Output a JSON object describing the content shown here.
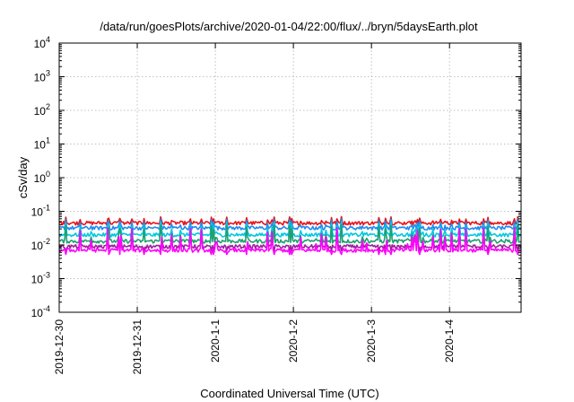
{
  "chart_data": {
    "type": "line",
    "title": "/data/run/goesPlots/archive/2020-01-04/22:00/flux/../bryn/5daysEarth.plot",
    "xlabel": "Coordinated Universal Time (UTC)",
    "ylabel": "cSv/day",
    "x_tick_labels": [
      "2019-12-30",
      "2019-12-31",
      "2020-1-1",
      "2020-1-2",
      "2020-1-3",
      "2020-1-4"
    ],
    "x_ticks": [
      "2019-12-30",
      "2019-12-31",
      "2020-01-01",
      "2020-01-02",
      "2020-01-03",
      "2020-01-04"
    ],
    "xlim": [
      "2019-12-30T00:00",
      "2020-01-04T22:00"
    ],
    "y_scale": "log",
    "ylim": [
      0.0001,
      10000
    ],
    "y_ticks": [
      {
        "base": "10",
        "exp": "-4"
      },
      {
        "base": "10",
        "exp": "-3"
      },
      {
        "base": "10",
        "exp": "-2"
      },
      {
        "base": "10",
        "exp": "-1"
      },
      {
        "base": "10",
        "exp": "0"
      },
      {
        "base": "10",
        "exp": "1"
      },
      {
        "base": "10",
        "exp": "2"
      },
      {
        "base": "10",
        "exp": "3"
      },
      {
        "base": "10",
        "exp": "4"
      }
    ],
    "grid": true,
    "series": [
      {
        "color": "#e8141c",
        "baseline": 0.045,
        "spike": 0.07
      },
      {
        "color": "#1e8cf0",
        "baseline": 0.032,
        "spike": 0.06
      },
      {
        "color": "#00c8e0",
        "baseline": 0.02,
        "spike": 0.05
      },
      {
        "color": "#1ea070",
        "baseline": 0.013,
        "spike": 0.04
      },
      {
        "color": "#a01ea0",
        "baseline": 0.009,
        "spike": 0.03
      },
      {
        "color": "#ff00ff",
        "baseline": 0.007,
        "spike": 0.05
      }
    ]
  }
}
